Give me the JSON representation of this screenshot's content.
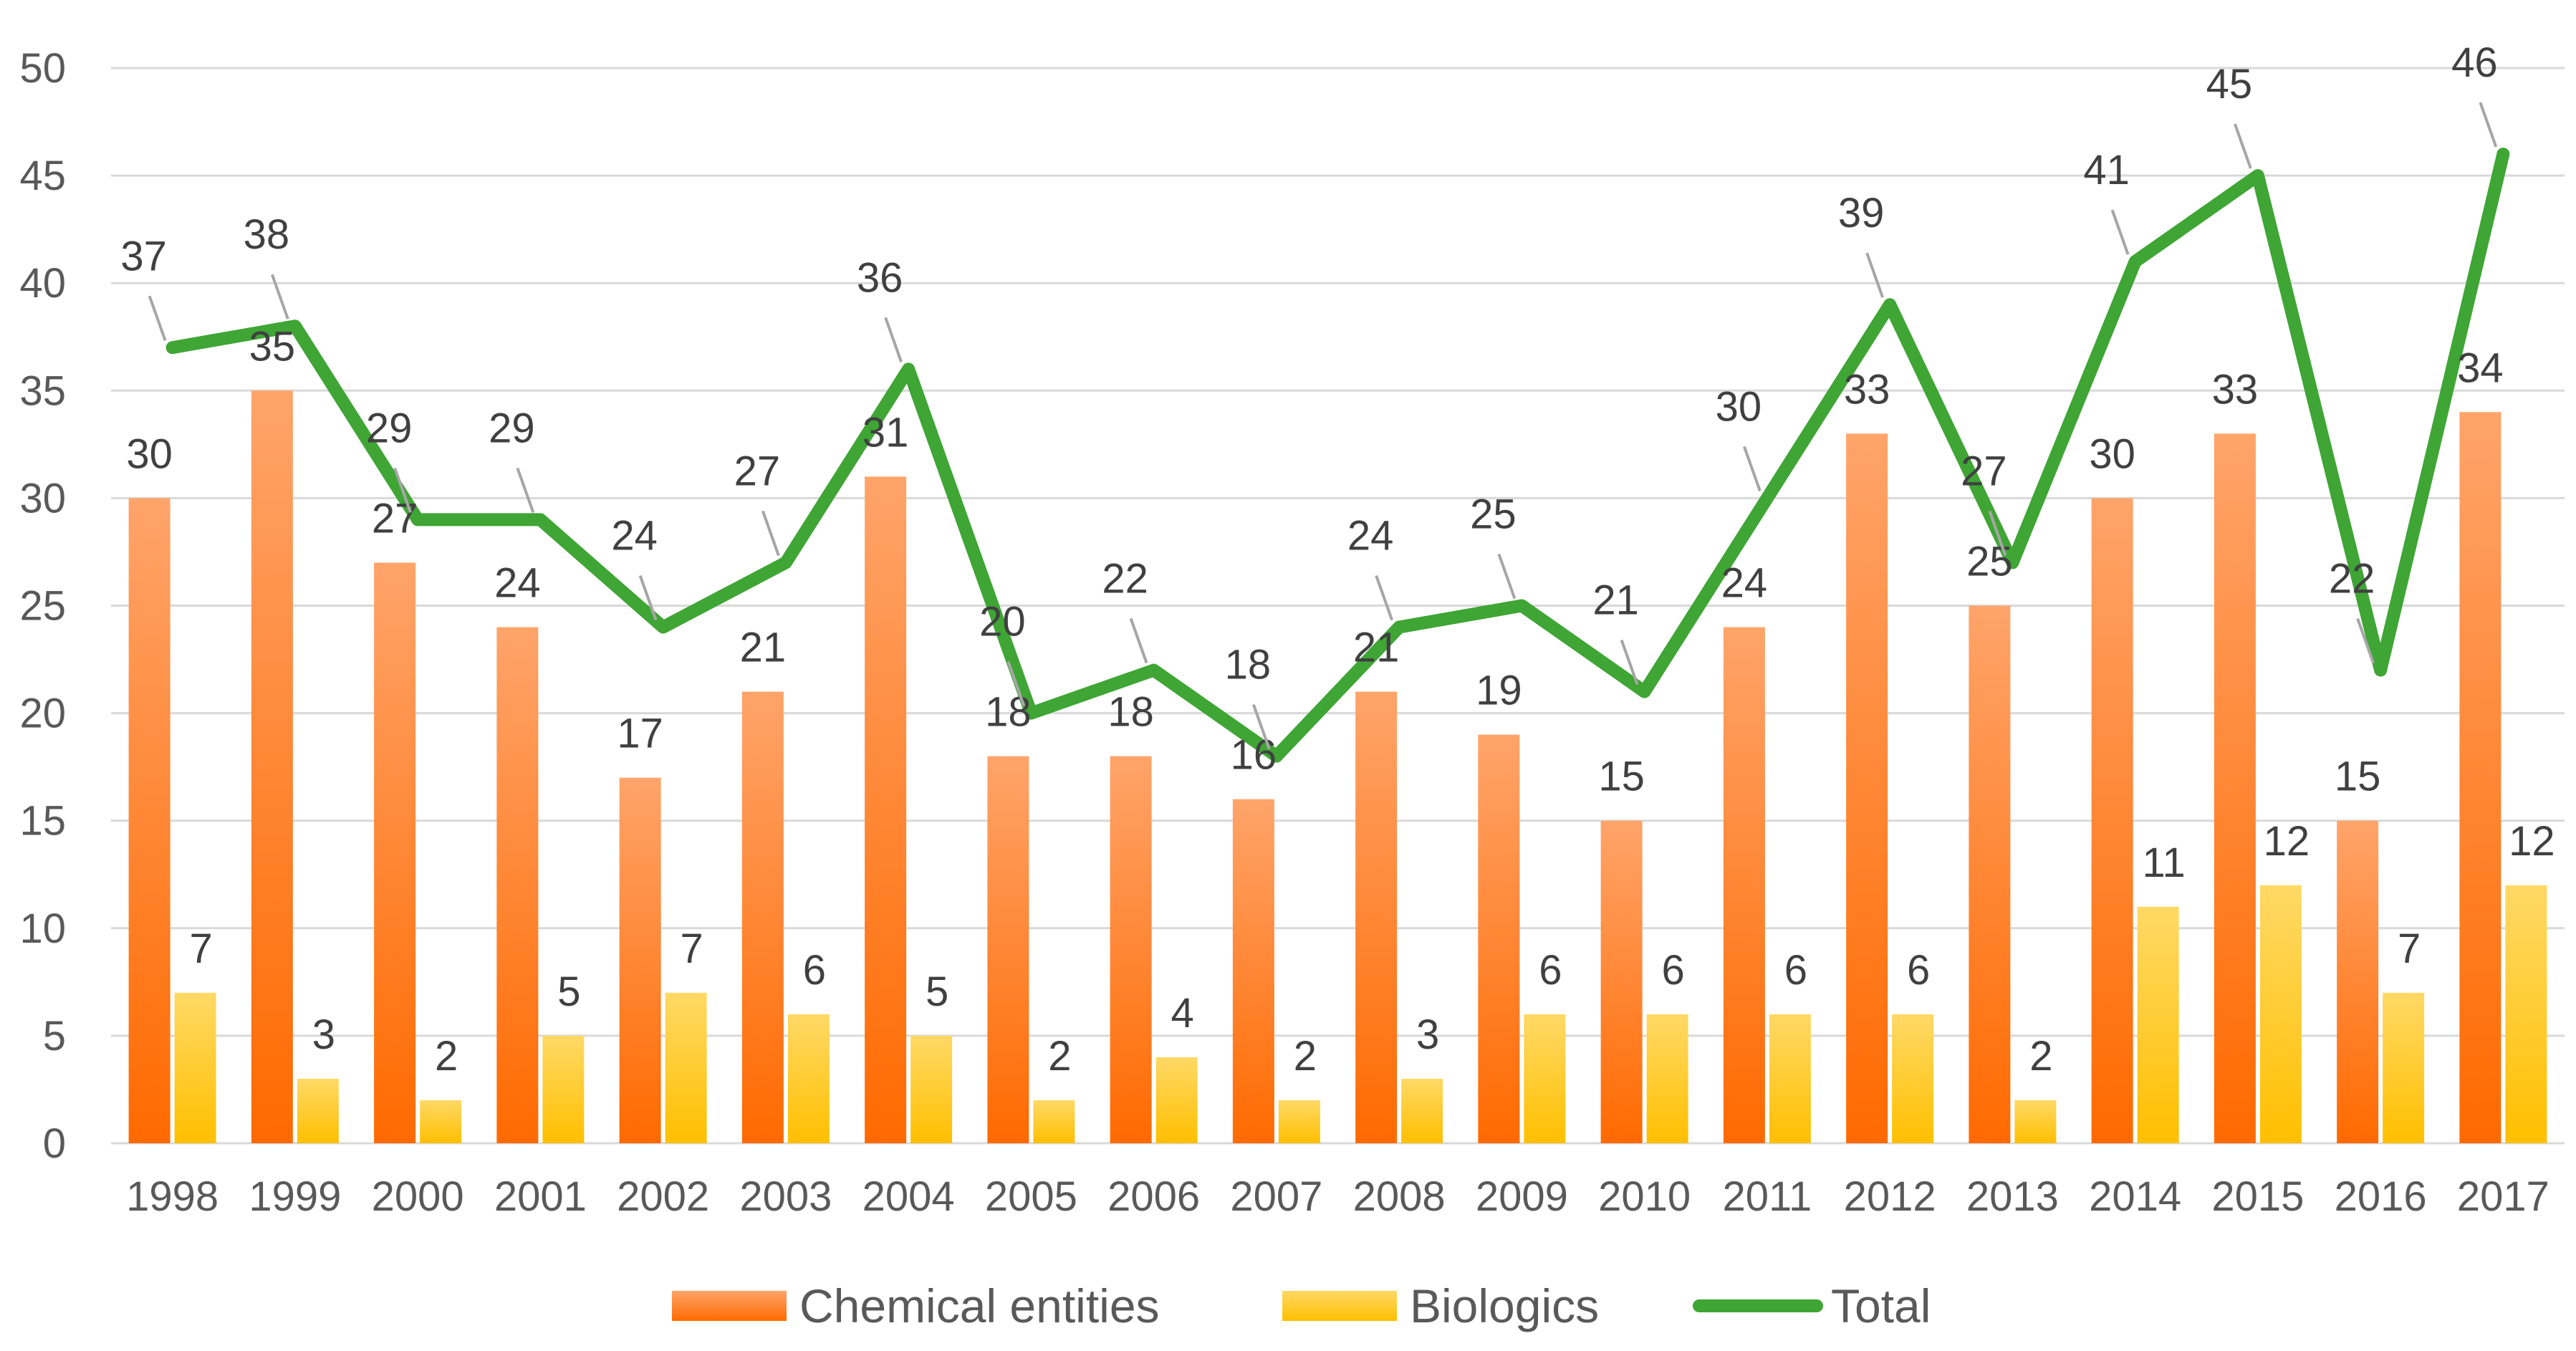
{
  "chart_data": {
    "type": "bar",
    "title": "",
    "xlabel": "",
    "ylabel": "",
    "ylim": [
      0,
      50
    ],
    "yticks": [
      "0",
      "5",
      "10",
      "15",
      "20",
      "25",
      "30",
      "35",
      "40",
      "45",
      "50"
    ],
    "grid": true,
    "legend_position": "bottom",
    "categories": [
      "1998",
      "1999",
      "2000",
      "2001",
      "2002",
      "2003",
      "2004",
      "2005",
      "2006",
      "2007",
      "2008",
      "2009",
      "2010",
      "2011",
      "2012",
      "2013",
      "2014",
      "2015",
      "2016",
      "2017"
    ],
    "series": [
      {
        "name": "Chemical entities",
        "type": "bar",
        "color": "#ff7722",
        "values": [
          30,
          35,
          27,
          24,
          17,
          21,
          31,
          18,
          18,
          16,
          21,
          19,
          15,
          24,
          33,
          25,
          30,
          33,
          15,
          34
        ]
      },
      {
        "name": "Biologics",
        "type": "bar",
        "color": "#ffc000",
        "values": [
          7,
          3,
          2,
          5,
          7,
          6,
          5,
          2,
          4,
          2,
          3,
          6,
          6,
          6,
          6,
          2,
          11,
          12,
          7,
          12
        ]
      },
      {
        "name": "Total",
        "type": "line",
        "color": "#3fa535",
        "values": [
          37,
          38,
          29,
          29,
          24,
          27,
          36,
          20,
          22,
          18,
          24,
          25,
          21,
          30,
          39,
          27,
          41,
          45,
          22,
          46
        ]
      }
    ]
  },
  "colors": {
    "chemical_top": "#ffa46a",
    "chemical_bottom": "#ff6a00",
    "biologics_top": "#ffd966",
    "biologics_bottom": "#ffbf00",
    "total_line": "#3fa535",
    "grid": "#d9d9d9"
  }
}
